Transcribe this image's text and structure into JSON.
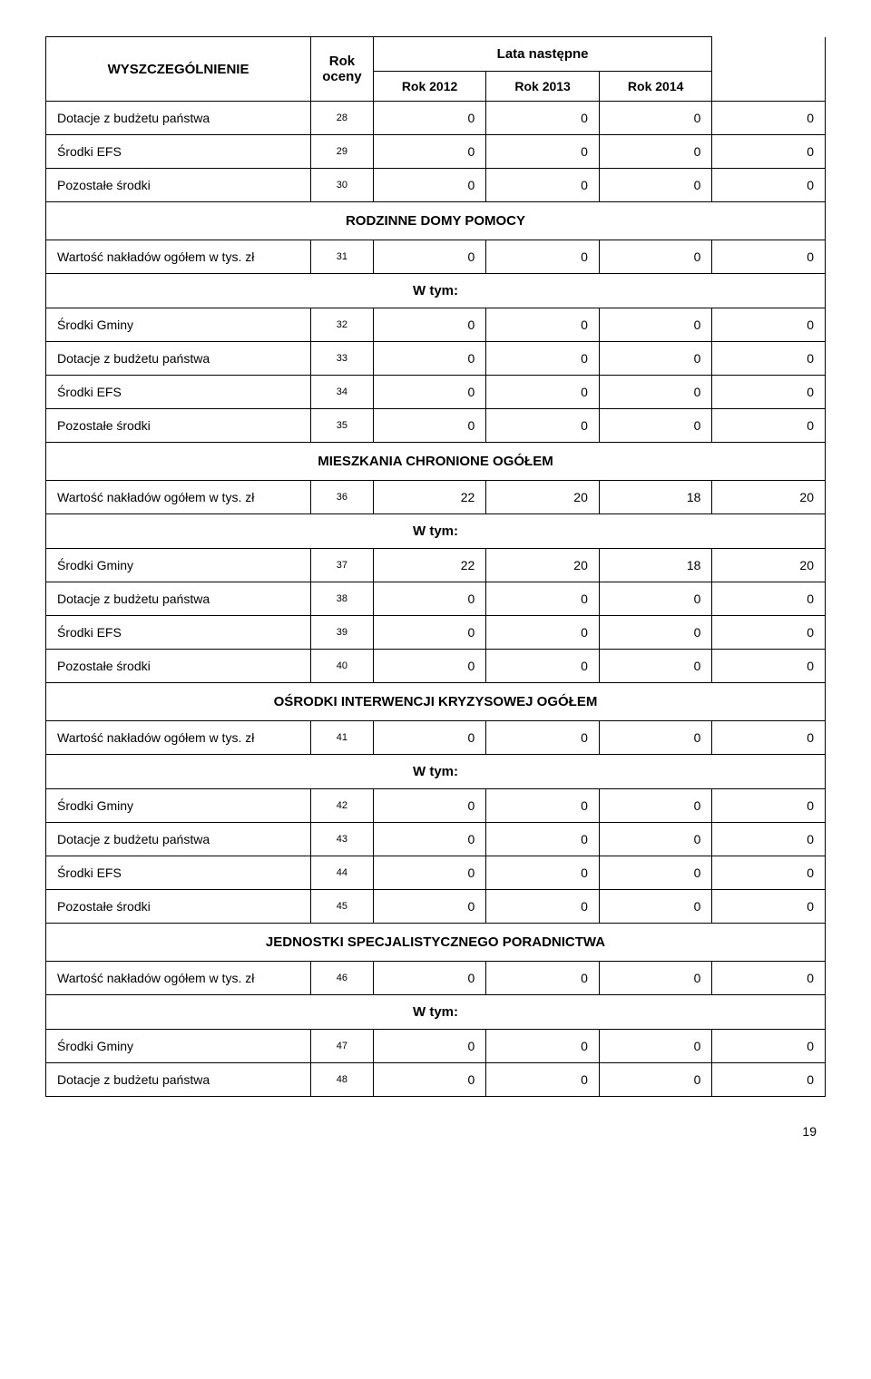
{
  "header": {
    "col1": "WYSZCZEGÓLNIENIE",
    "col2": "Rok oceny",
    "col3_top": "Lata następne",
    "col3_a": "Rok 2012",
    "col3_b": "Rok 2013",
    "col3_c": "Rok 2014"
  },
  "rows_top": [
    {
      "label": "Dotacje z budżetu państwa",
      "num": "28",
      "v": [
        "0",
        "0",
        "0",
        "0"
      ]
    },
    {
      "label": "Środki EFS",
      "num": "29",
      "v": [
        "0",
        "0",
        "0",
        "0"
      ]
    },
    {
      "label": "Pozostałe środki",
      "num": "30",
      "v": [
        "0",
        "0",
        "0",
        "0"
      ]
    }
  ],
  "sections": [
    {
      "title": "RODZINNE DOMY POMOCY",
      "wartosc": {
        "label": "Wartość nakładów ogółem w tys. zł",
        "num": "31",
        "v": [
          "0",
          "0",
          "0",
          "0"
        ]
      },
      "wtym": "W tym:",
      "rows": [
        {
          "label": "Środki Gminy",
          "num": "32",
          "v": [
            "0",
            "0",
            "0",
            "0"
          ]
        },
        {
          "label": "Dotacje z budżetu państwa",
          "num": "33",
          "v": [
            "0",
            "0",
            "0",
            "0"
          ]
        },
        {
          "label": "Środki EFS",
          "num": "34",
          "v": [
            "0",
            "0",
            "0",
            "0"
          ]
        },
        {
          "label": "Pozostałe środki",
          "num": "35",
          "v": [
            "0",
            "0",
            "0",
            "0"
          ]
        }
      ]
    },
    {
      "title": "MIESZKANIA CHRONIONE OGÓŁEM",
      "wartosc": {
        "label": "Wartość nakładów ogółem w tys. zł",
        "num": "36",
        "v": [
          "22",
          "20",
          "18",
          "20"
        ]
      },
      "wtym": "W tym:",
      "rows": [
        {
          "label": "Środki Gminy",
          "num": "37",
          "v": [
            "22",
            "20",
            "18",
            "20"
          ]
        },
        {
          "label": "Dotacje z budżetu państwa",
          "num": "38",
          "v": [
            "0",
            "0",
            "0",
            "0"
          ]
        },
        {
          "label": "Środki EFS",
          "num": "39",
          "v": [
            "0",
            "0",
            "0",
            "0"
          ]
        },
        {
          "label": "Pozostałe środki",
          "num": "40",
          "v": [
            "0",
            "0",
            "0",
            "0"
          ]
        }
      ]
    },
    {
      "title": "OŚRODKI INTERWENCJI KRYZYSOWEJ OGÓŁEM",
      "wartosc": {
        "label": "Wartość nakładów ogółem w tys. zł",
        "num": "41",
        "v": [
          "0",
          "0",
          "0",
          "0"
        ]
      },
      "wtym": "W tym:",
      "rows": [
        {
          "label": "Środki Gminy",
          "num": "42",
          "v": [
            "0",
            "0",
            "0",
            "0"
          ]
        },
        {
          "label": "Dotacje z budżetu państwa",
          "num": "43",
          "v": [
            "0",
            "0",
            "0",
            "0"
          ]
        },
        {
          "label": "Środki EFS",
          "num": "44",
          "v": [
            "0",
            "0",
            "0",
            "0"
          ]
        },
        {
          "label": "Pozostałe środki",
          "num": "45",
          "v": [
            "0",
            "0",
            "0",
            "0"
          ]
        }
      ]
    },
    {
      "title": "JEDNOSTKI SPECJALISTYCZNEGO PORADNICTWA",
      "wartosc": {
        "label": "Wartość nakładów ogółem w tys. zł",
        "num": "46",
        "v": [
          "0",
          "0",
          "0",
          "0"
        ]
      },
      "wtym": "W tym:",
      "rows": [
        {
          "label": "Środki Gminy",
          "num": "47",
          "v": [
            "0",
            "0",
            "0",
            "0"
          ]
        },
        {
          "label": "Dotacje z budżetu państwa",
          "num": "48",
          "v": [
            "0",
            "0",
            "0",
            "0"
          ]
        }
      ]
    }
  ],
  "page_number": "19"
}
